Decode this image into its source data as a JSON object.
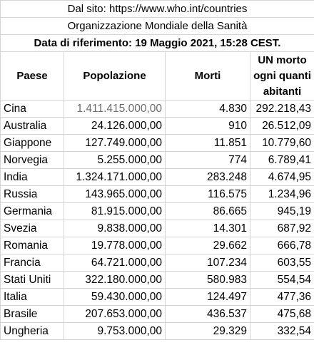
{
  "header": {
    "source": "Dal sito: https://www.who.int/countries",
    "organization": "Organizzazione Mondiale della Sanità",
    "reference_date": "Data di riferimento: 19 Maggio 2021, 15:28 CEST."
  },
  "columns": {
    "country": "Paese",
    "population": "Popolazione",
    "deaths": "Morti",
    "ratio": "UN morto ogni quanti abitanti"
  },
  "rows": [
    {
      "country": "Cina",
      "population": "1.411.415.000,00",
      "deaths": "4.830",
      "ratio": "292.218,43"
    },
    {
      "country": "Australia",
      "population": "24.126.000,00",
      "deaths": "910",
      "ratio": "26.512,09"
    },
    {
      "country": "Giappone",
      "population": "127.749.000,00",
      "deaths": "11.851",
      "ratio": "10.779,60"
    },
    {
      "country": "Norvegia",
      "population": "5.255.000,00",
      "deaths": "774",
      "ratio": "6.789,41"
    },
    {
      "country": "India",
      "population": "1.324.171.000,00",
      "deaths": "283.248",
      "ratio": "4.674,95"
    },
    {
      "country": "Russia",
      "population": "143.965.000,00",
      "deaths": "116.575",
      "ratio": "1.234,96"
    },
    {
      "country": "Germania",
      "population": "81.915.000,00",
      "deaths": "86.665",
      "ratio": "945,19"
    },
    {
      "country": "Svezia",
      "population": "9.838.000,00",
      "deaths": "14.301",
      "ratio": "687,92"
    },
    {
      "country": "Romania",
      "population": "19.778.000,00",
      "deaths": "29.662",
      "ratio": "666,78"
    },
    {
      "country": "Francia",
      "population": "64.721.000,00",
      "deaths": "107.234",
      "ratio": "603,55"
    },
    {
      "country": "Stati Uniti",
      "population": "322.180.000,00",
      "deaths": "580.983",
      "ratio": "554,54"
    },
    {
      "country": "Italia",
      "population": "59.430.000,00",
      "deaths": "124.497",
      "ratio": "477,36"
    },
    {
      "country": "Brasile",
      "population": "207.653.000,00",
      "deaths": "436.537",
      "ratio": "475,68"
    },
    {
      "country": "Ungheria",
      "population": "9.753.000,00",
      "deaths": "29.329",
      "ratio": "332,54"
    }
  ]
}
